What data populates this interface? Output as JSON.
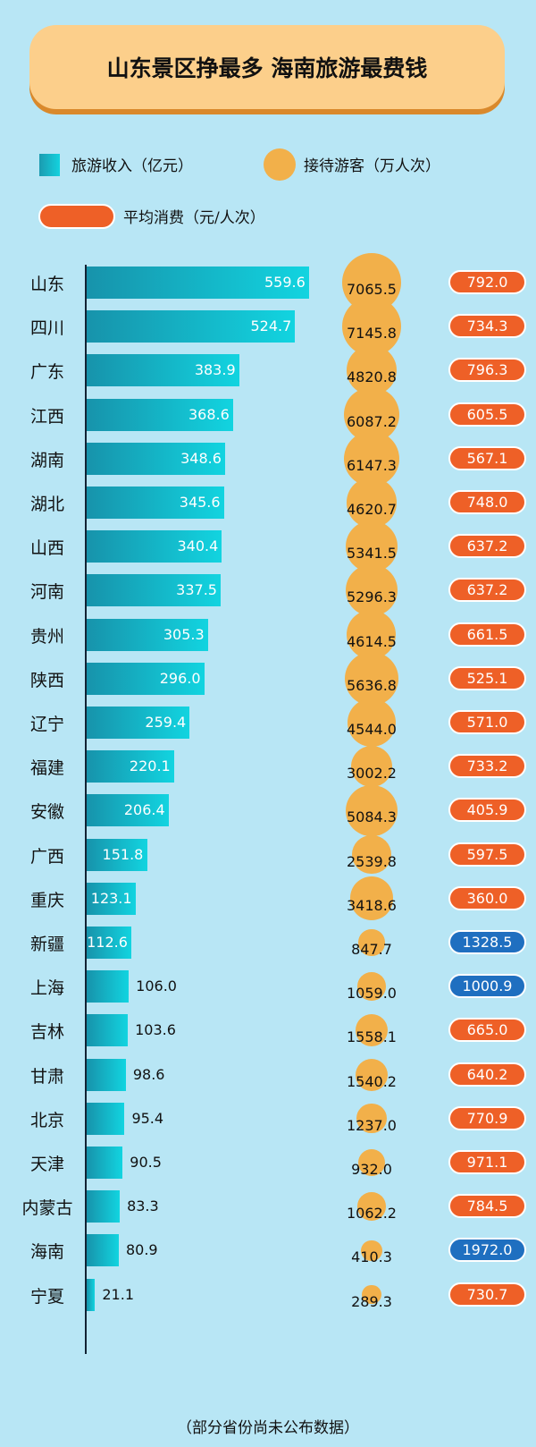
{
  "title": "山东景区挣最多 海南旅游最费钱",
  "legend": {
    "revenue": "旅游收入（亿元）",
    "visitors": "接待游客（万人次）",
    "avg_spend": "平均消费（元/人次）"
  },
  "footnote": "（部分省份尚未公布数据）",
  "colors": {
    "background": "#b8e6f5",
    "bar": "#12c4d4",
    "bubble": "#f2b04a",
    "pill_orange": "#ee6027",
    "pill_blue": "#1f6fc0"
  },
  "chart_data": {
    "type": "bar",
    "categories": [
      "山东",
      "四川",
      "广东",
      "江西",
      "湖南",
      "湖北",
      "山西",
      "河南",
      "贵州",
      "陕西",
      "辽宁",
      "福建",
      "安徽",
      "广西",
      "重庆",
      "新疆",
      "上海",
      "吉林",
      "甘肃",
      "北京",
      "天津",
      "内蒙古",
      "海南",
      "宁夏"
    ],
    "series": [
      {
        "name": "旅游收入（亿元）",
        "values": [
          "559.6",
          "524.7",
          "383.9",
          "368.6",
          "348.6",
          "345.6",
          "340.4",
          "337.5",
          "305.3",
          "296.0",
          "259.4",
          "220.1",
          "206.4",
          "151.8",
          "123.1",
          "112.6",
          "106.0",
          "103.6",
          "98.6",
          "95.4",
          "90.5",
          "83.3",
          "80.9",
          "21.1"
        ]
      },
      {
        "name": "接待游客（万人次）",
        "values": [
          "7065.5",
          "7145.8",
          "4820.8",
          "6087.2",
          "6147.3",
          "4620.7",
          "5341.5",
          "5296.3",
          "4614.5",
          "5636.8",
          "4544.0",
          "3002.2",
          "5084.3",
          "2539.8",
          "3418.6",
          "847.7",
          "1059.0",
          "1558.1",
          "1540.2",
          "1237.0",
          "932.0",
          "1062.2",
          "410.3",
          "289.3"
        ]
      },
      {
        "name": "平均消费（元/人次）",
        "values": [
          "792.0",
          "734.3",
          "796.3",
          "605.5",
          "567.1",
          "748.0",
          "637.2",
          "637.2",
          "661.5",
          "525.1",
          "571.0",
          "733.2",
          "405.9",
          "597.5",
          "360.0",
          "1328.5",
          "1000.9",
          "665.0",
          "640.2",
          "770.9",
          "971.1",
          "784.5",
          "1972.0",
          "730.7"
        ]
      }
    ],
    "avg_spend_highlight": [
      false,
      false,
      false,
      false,
      false,
      false,
      false,
      false,
      false,
      false,
      false,
      false,
      false,
      false,
      false,
      true,
      true,
      false,
      false,
      false,
      false,
      false,
      true,
      false
    ]
  }
}
